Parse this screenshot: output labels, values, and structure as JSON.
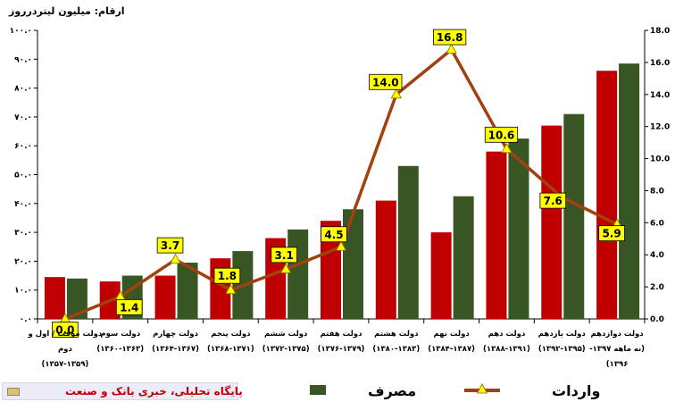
{
  "units_label": "ارقام: میلیون لیتردرروز",
  "source": "پایگاه تحلیلی، خبری بانک و صنعت",
  "colors": {
    "imports_bar": "#c00000",
    "consumption_bar": "#375623",
    "imports_line": "#a0410f",
    "marker": "#ffff00",
    "label_bg": "#ffff00"
  },
  "chart_data": {
    "type": "bar",
    "categories": [
      [
        "دولت موقت / اول و",
        "دوم",
        "(۱۳۵۷-۱۳۵۹)"
      ],
      [
        "دولت سوم",
        "(۱۳۶۰-۱۳۶۳)"
      ],
      [
        "دولت چهارم",
        "(۱۳۶۴-۱۳۶۷)"
      ],
      [
        "دولت پنجم",
        "(۱۳۶۸-۱۳۷۱)"
      ],
      [
        "دولت ششم",
        "(۱۳۷۲-۱۳۷۵)"
      ],
      [
        "دولت هفتم",
        "(۱۳۷۶-۱۳۷۹)"
      ],
      [
        "دولت هشتم",
        "(۱۳۸۰-۱۳۸۳)"
      ],
      [
        "دولت نهم",
        "(۱۳۸۴-۱۳۸۷)"
      ],
      [
        "دولت دهم",
        "(۱۳۸۸-۱۳۹۱)"
      ],
      [
        "دولت یازدهم",
        "(۱۳۹۲-۱۳۹۵)"
      ],
      [
        "دولت دوازدهم",
        "(نه ماهه ۱۳۹۷-",
        "۱۳۹۶)"
      ]
    ],
    "series": [
      {
        "name": "",
        "color": "#c00000",
        "axis": "left",
        "values": [
          14.5,
          13,
          15,
          21,
          28,
          34,
          41,
          30,
          58,
          67,
          86
        ]
      },
      {
        "name": "مصرف",
        "color": "#375623",
        "axis": "left",
        "values": [
          14,
          15,
          19.5,
          23.5,
          31,
          38,
          53,
          42.5,
          62.5,
          71,
          88.5
        ]
      },
      {
        "name": "واردات",
        "type": "line",
        "color": "#a0410f",
        "axis": "right",
        "values": [
          0.0,
          1.4,
          3.7,
          1.8,
          3.1,
          4.5,
          14.0,
          16.8,
          10.6,
          7.6,
          5.9
        ],
        "labels": [
          "0.0",
          "1.4",
          "3.7",
          "1.8",
          "3.1",
          "4.5",
          "14.0",
          "16.8",
          "10.6",
          "7.6",
          "5.9"
        ]
      }
    ],
    "y_left": {
      "min": 0,
      "max": 100,
      "step": 10,
      "tick_labels": [
        "۰.۰",
        "۱۰.۰",
        "۲۰.۰",
        "۳۰.۰",
        "۴۰.۰",
        "۵۰.۰",
        "۶۰.۰",
        "۷۰.۰",
        "۸۰.۰",
        "۹۰.۰",
        "۱۰۰.۰"
      ]
    },
    "y_right": {
      "min": 0,
      "max": 18,
      "step": 2,
      "tick_labels": [
        "0.0",
        "2.0",
        "4.0",
        "6.0",
        "8.0",
        "10.0",
        "12.0",
        "14.0",
        "16.0",
        "18.0"
      ]
    },
    "legend": [
      {
        "label": "واردات",
        "kind": "line-marker"
      },
      {
        "label": "مصرف",
        "kind": "box"
      }
    ],
    "legend_position": "bottom",
    "grid": false
  }
}
